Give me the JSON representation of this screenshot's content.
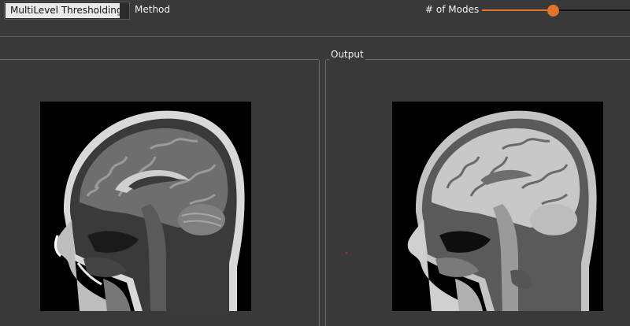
{
  "toolbar": {
    "method_value": "MultiLevel Thresholding",
    "method_label": "Method",
    "modes_label": "# of Modes",
    "modes_slider_fraction": 0.48
  },
  "panels": {
    "output_title": "Output"
  },
  "colors": {
    "background": "#393939",
    "accent": "#e0732e"
  },
  "images": {
    "input": "mri-sagittal-head-grayscale",
    "output": "mri-sagittal-head-thresholded"
  }
}
